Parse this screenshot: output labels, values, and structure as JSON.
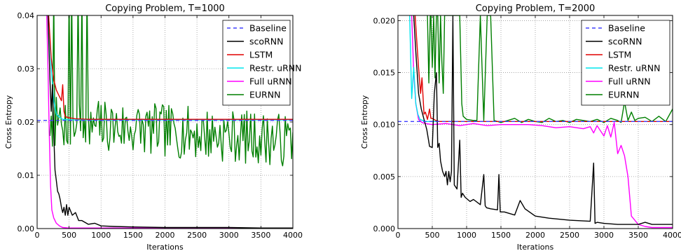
{
  "chart_data": [
    {
      "type": "line",
      "title": "Copying Problem, T=1000",
      "xlabel": "Iterations",
      "ylabel": "Cross Entropy",
      "xlim": [
        0,
        4000
      ],
      "ylim": [
        0,
        0.04
      ],
      "xticks": [
        "0",
        "500",
        "1000",
        "1500",
        "2000",
        "2500",
        "3000",
        "3500",
        "4000"
      ],
      "yticks": [
        "0.00",
        "0.01",
        "0.02",
        "0.03",
        "0.04"
      ],
      "grid": true,
      "legend_position": "top-right",
      "series": [
        {
          "name": "Baseline",
          "color": "#4040ff",
          "style": "dashed",
          "x": [
            0,
            4000
          ],
          "y": [
            0.0203,
            0.0203
          ]
        },
        {
          "name": "scoRNN",
          "color": "#000000",
          "style": "solid",
          "x": [
            170,
            200,
            220,
            240,
            260,
            280,
            300,
            320,
            340,
            360,
            380,
            400,
            420,
            440,
            460,
            480,
            500,
            550,
            600,
            650,
            700,
            800,
            900,
            1000,
            1200,
            1500,
            2000,
            2500,
            3000,
            3500,
            4000
          ],
          "y": [
            0.04,
            0.028,
            0.022,
            0.027,
            0.018,
            0.011,
            0.009,
            0.007,
            0.0065,
            0.0055,
            0.004,
            0.003,
            0.004,
            0.0025,
            0.0045,
            0.0025,
            0.004,
            0.0025,
            0.003,
            0.0015,
            0.0015,
            0.0008,
            0.001,
            0.0005,
            0.0004,
            0.0003,
            0.0002,
            0.0002,
            0.0002,
            0.0001,
            0.0001
          ]
        },
        {
          "name": "LSTM",
          "color": "#e00000",
          "style": "solid",
          "x": [
            180,
            220,
            260,
            300,
            340,
            380,
            400,
            420,
            440,
            500,
            600,
            800,
            1000,
            2000,
            3000,
            4000
          ],
          "y": [
            0.04,
            0.032,
            0.028,
            0.026,
            0.025,
            0.024,
            0.027,
            0.022,
            0.021,
            0.0208,
            0.0206,
            0.0205,
            0.0205,
            0.0205,
            0.0205,
            0.0205
          ]
        },
        {
          "name": "Restr. uRNN",
          "color": "#00e5ee",
          "style": "solid",
          "x": [
            180,
            220,
            260,
            300,
            340,
            400,
            500,
            700,
            1000,
            2000,
            3000,
            4000
          ],
          "y": [
            0.04,
            0.03,
            0.024,
            0.0215,
            0.021,
            0.0205,
            0.0204,
            0.0204,
            0.0204,
            0.0204,
            0.0204,
            0.0204
          ]
        },
        {
          "name": "Full uRNN",
          "color": "#ff00ff",
          "style": "solid",
          "x": [
            150,
            170,
            190,
            210,
            230,
            260,
            300,
            350,
            400,
            500,
            1000,
            2000,
            3000,
            4000
          ],
          "y": [
            0.04,
            0.03,
            0.018,
            0.008,
            0.0035,
            0.002,
            0.001,
            0.0005,
            0.0002,
            0.0001,
            0.0001,
            0.0001,
            0.0001,
            0.0001
          ]
        },
        {
          "name": "EURNN",
          "color": "#007f00",
          "style": "noisy",
          "start_x": 200,
          "mean_start": 0.02,
          "mean_end": 0.0165,
          "amplitude": 0.005,
          "seed": 7
        }
      ]
    },
    {
      "type": "line",
      "title": "Copying Problem, T=2000",
      "xlabel": "Iterations",
      "ylabel": "Cross Entropy",
      "xlim": [
        0,
        4000
      ],
      "ylim": [
        0,
        0.0205
      ],
      "xticks": [
        "0",
        "500",
        "1000",
        "1500",
        "2000",
        "2500",
        "3000",
        "3500",
        "4000"
      ],
      "yticks": [
        "0.000",
        "0.005",
        "0.010",
        "0.015",
        "0.020"
      ],
      "grid": true,
      "legend_position": "top-right",
      "series": [
        {
          "name": "Baseline",
          "color": "#4040ff",
          "style": "dashed",
          "x": [
            0,
            4000
          ],
          "y": [
            0.0103,
            0.0103
          ]
        },
        {
          "name": "scoRNN",
          "color": "#000000",
          "style": "solid",
          "x": [
            230,
            260,
            300,
            340,
            380,
            420,
            460,
            500,
            530,
            560,
            580,
            600,
            620,
            650,
            680,
            700,
            720,
            740,
            760,
            780,
            800,
            820,
            860,
            900,
            920,
            940,
            980,
            1050,
            1100,
            1200,
            1250,
            1270,
            1290,
            1350,
            1450,
            1470,
            1490,
            1550,
            1700,
            1780,
            1850,
            2000,
            2200,
            2500,
            2800,
            2850,
            2870,
            2900,
            3000,
            3200,
            3500,
            3600,
            3700,
            4000
          ],
          "y": [
            0.0205,
            0.017,
            0.013,
            0.0115,
            0.0105,
            0.0095,
            0.0079,
            0.0078,
            0.013,
            0.015,
            0.0078,
            0.0082,
            0.0065,
            0.0055,
            0.005,
            0.0055,
            0.0042,
            0.0055,
            0.0045,
            0.0055,
            0.0205,
            0.0042,
            0.0038,
            0.0085,
            0.003,
            0.0034,
            0.003,
            0.0026,
            0.0028,
            0.0023,
            0.0052,
            0.0022,
            0.002,
            0.0019,
            0.0018,
            0.0052,
            0.0016,
            0.0016,
            0.0013,
            0.0027,
            0.0019,
            0.0012,
            0.001,
            0.0008,
            0.0007,
            0.0063,
            0.0005,
            0.0006,
            0.0005,
            0.0004,
            0.0004,
            0.0006,
            0.0004,
            0.0004
          ]
        },
        {
          "name": "LSTM",
          "color": "#e00000",
          "style": "solid",
          "x": [
            250,
            280,
            300,
            330,
            350,
            380,
            400,
            430,
            460,
            480,
            500,
            550,
            600,
            800,
            1000,
            2000,
            3000,
            4000
          ],
          "y": [
            0.0205,
            0.0175,
            0.0155,
            0.013,
            0.0145,
            0.011,
            0.0112,
            0.0105,
            0.0115,
            0.0106,
            0.0106,
            0.0104,
            0.0103,
            0.0103,
            0.0103,
            0.0103,
            0.0103,
            0.0103
          ]
        },
        {
          "name": "Restr. uRNN",
          "color": "#00e5ee",
          "style": "solid",
          "x": [
            170,
            200,
            230,
            260,
            290,
            320,
            400,
            600,
            1000,
            2000,
            3000,
            4000
          ],
          "y": [
            0.0205,
            0.0125,
            0.0155,
            0.012,
            0.011,
            0.0105,
            0.0103,
            0.0103,
            0.0103,
            0.0103,
            0.0103,
            0.0103
          ]
        },
        {
          "name": "Full uRNN",
          "color": "#ff00ff",
          "style": "solid",
          "x": [
            200,
            230,
            260,
            300,
            350,
            400,
            500,
            700,
            900,
            1100,
            1300,
            1500,
            1700,
            1900,
            2100,
            2300,
            2500,
            2700,
            2800,
            2850,
            2900,
            3000,
            3050,
            3100,
            3150,
            3200,
            3250,
            3300,
            3350,
            3400,
            3500,
            3600,
            3700,
            3800,
            4000
          ],
          "y": [
            0.0205,
            0.015,
            0.012,
            0.0105,
            0.0102,
            0.0101,
            0.01,
            0.0101,
            0.0099,
            0.0101,
            0.0099,
            0.01,
            0.01,
            0.01,
            0.0099,
            0.0097,
            0.0098,
            0.0096,
            0.0098,
            0.0092,
            0.0099,
            0.0089,
            0.0099,
            0.0088,
            0.0102,
            0.0072,
            0.008,
            0.007,
            0.005,
            0.0012,
            0.0004,
            0.0002,
            0.0001,
            0.0001,
            0.0001
          ]
        },
        {
          "name": "EURNN",
          "color": "#007f00",
          "style": "solid",
          "x": [
            430,
            450,
            470,
            480,
            500,
            520,
            540,
            560,
            580,
            600,
            620,
            640,
            660,
            680,
            700,
            720,
            740,
            760,
            780,
            800,
            850,
            880,
            900,
            930,
            950,
            1000,
            1100,
            1150,
            1200,
            1250,
            1300,
            1350,
            1400,
            1500,
            1600,
            1700,
            1800,
            1900,
            2000,
            2100,
            2200,
            2300,
            2400,
            2500,
            2600,
            2700,
            2800,
            2900,
            3000,
            3100,
            3200,
            3250,
            3300,
            3350,
            3400,
            3450,
            3500,
            3600,
            3700,
            3800,
            3900,
            4000
          ],
          "y": [
            0.0205,
            0.014,
            0.0205,
            0.0205,
            0.0155,
            0.0205,
            0.0145,
            0.0205,
            0.0205,
            0.014,
            0.0205,
            0.016,
            0.013,
            0.0205,
            0.0205,
            0.0205,
            0.0205,
            0.0205,
            0.0205,
            0.0205,
            0.0205,
            0.0205,
            0.0205,
            0.012,
            0.0108,
            0.0105,
            0.0104,
            0.0104,
            0.0205,
            0.0104,
            0.0205,
            0.0205,
            0.0104,
            0.0102,
            0.0104,
            0.0106,
            0.0102,
            0.0105,
            0.0103,
            0.0102,
            0.0106,
            0.0103,
            0.0104,
            0.0102,
            0.0105,
            0.0104,
            0.0103,
            0.0105,
            0.0102,
            0.0106,
            0.0104,
            0.0102,
            0.0122,
            0.0104,
            0.0112,
            0.0104,
            0.0106,
            0.0107,
            0.0103,
            0.0108,
            0.0103,
            0.0115
          ]
        }
      ]
    }
  ]
}
